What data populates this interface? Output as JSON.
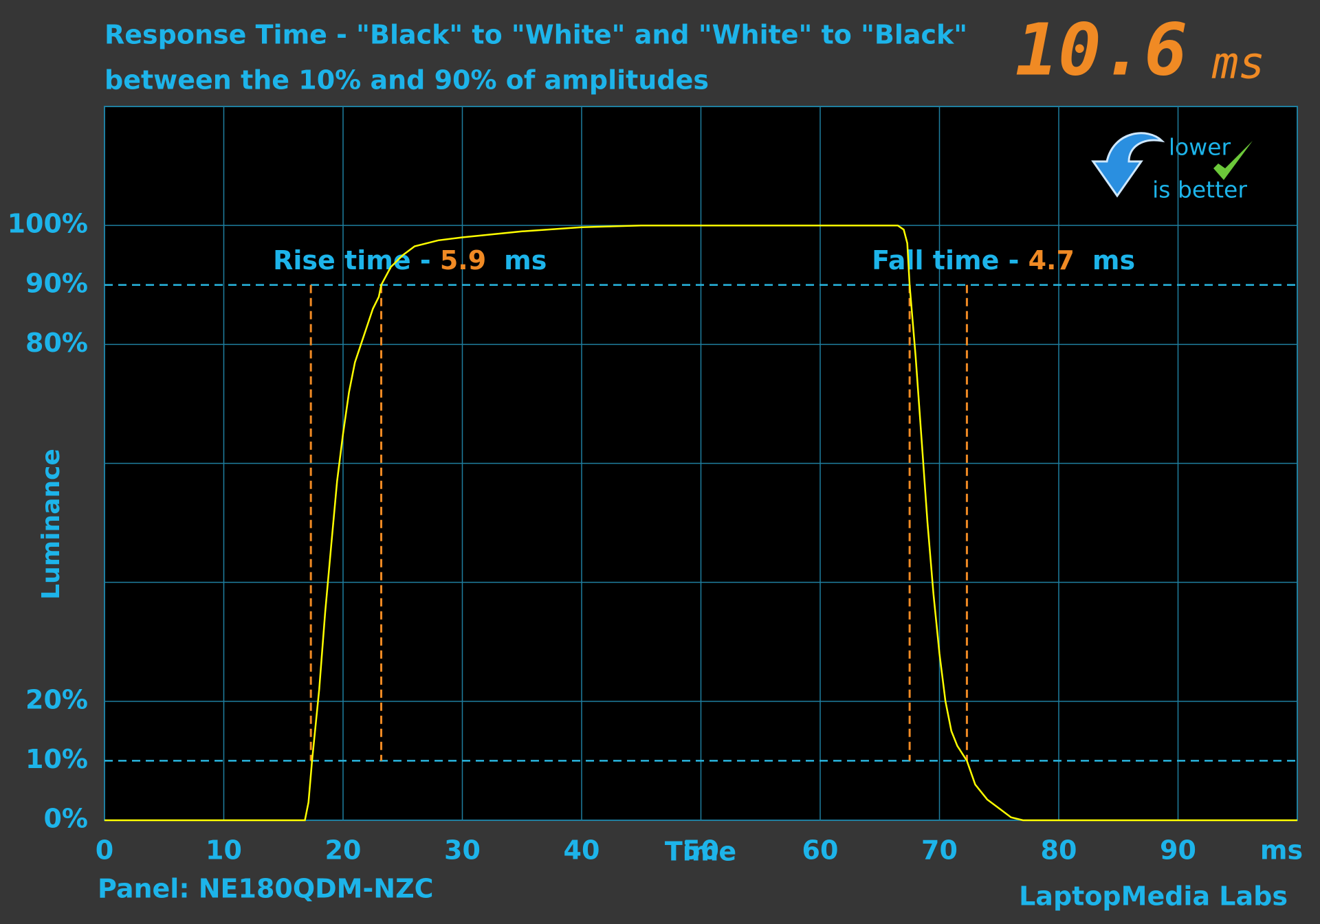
{
  "chart_data": {
    "type": "line",
    "title": "Response Time - \"Black\" to \"White\" and \"White\" to \"Black\"",
    "subtitle": "between the 10% and 90% of amplitudes",
    "display": {
      "value": 10.6,
      "unit": "ms"
    },
    "badge": {
      "line1": "lower",
      "line2": "is better"
    },
    "ylabel": "Luminance",
    "xlabel": "Time",
    "xunit": "ms",
    "footer_left": "Panel: NE180QDM-NZC",
    "footer_right": "LaptopMedia Labs",
    "xlim": [
      0,
      100
    ],
    "ylim": [
      0,
      120
    ],
    "xticks": [
      0,
      10,
      20,
      30,
      40,
      50,
      60,
      70,
      80,
      90
    ],
    "yticks": [
      {
        "value": 0,
        "label": "0%"
      },
      {
        "value": 10,
        "label": "10%"
      },
      {
        "value": 20,
        "label": "20%"
      },
      {
        "value": 80,
        "label": "80%"
      },
      {
        "value": 90,
        "label": "90%"
      },
      {
        "value": 100,
        "label": "100%"
      }
    ],
    "ygrid": [
      20,
      40,
      60,
      80,
      100
    ],
    "threshold_lines": [
      10,
      90
    ],
    "grid": true,
    "annotations": [
      {
        "label": "Rise time - ",
        "value": 5.9,
        "unit": "ms",
        "markers": [
          17.3,
          23.2
        ]
      },
      {
        "label": "Fall time - ",
        "value": 4.7,
        "unit": "ms",
        "markers": [
          67.5,
          72.3
        ]
      }
    ],
    "series": [
      {
        "color": "#ffff00",
        "x": [
          0,
          16.8,
          17.1,
          17.4,
          18,
          18.5,
          19,
          19.5,
          20,
          20.5,
          21,
          21.5,
          22,
          22.5,
          23,
          23.2,
          24,
          25,
          26,
          28,
          30,
          35,
          40,
          45,
          60,
          66.5,
          67,
          67.3,
          67.5,
          68,
          68.5,
          69,
          69.5,
          70,
          70.5,
          71,
          71.5,
          72.3,
          73,
          74,
          75,
          76,
          77,
          100
        ],
        "values": [
          0,
          0,
          3,
          10,
          22,
          35,
          46,
          57,
          65,
          72,
          77,
          80,
          83,
          86,
          88,
          90,
          93,
          95,
          96.5,
          97.5,
          98,
          99,
          99.7,
          100,
          100,
          100,
          99.3,
          97,
          90,
          78,
          64,
          50,
          38,
          28,
          20,
          15,
          12.5,
          10,
          6,
          3.5,
          2,
          0.5,
          0,
          0
        ]
      }
    ]
  }
}
